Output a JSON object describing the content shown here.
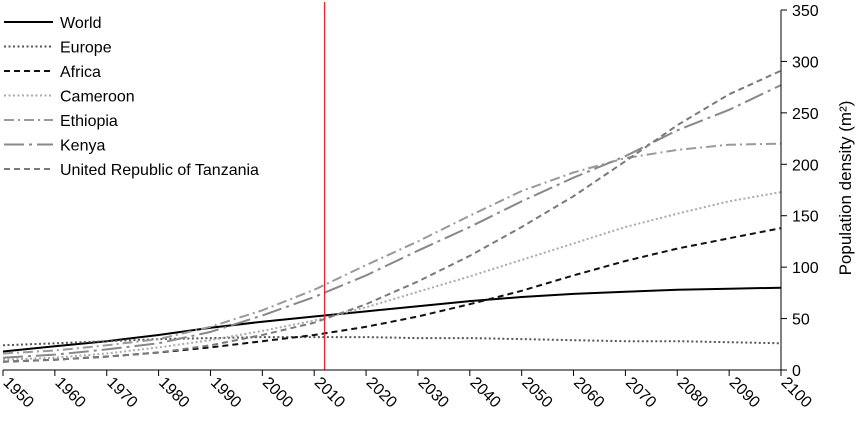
{
  "chart_data": {
    "type": "line",
    "title": "",
    "xlabel": "",
    "ylabel": "Population density (m²)",
    "xlim": [
      1950,
      2100
    ],
    "ylim": [
      0,
      350
    ],
    "x_ticks": [
      1950,
      1960,
      1970,
      1980,
      1990,
      2000,
      2010,
      2020,
      2030,
      2040,
      2050,
      2060,
      2070,
      2080,
      2090,
      2100
    ],
    "y_ticks": [
      0,
      50,
      100,
      150,
      200,
      250,
      300,
      350
    ],
    "y_axis_side": "right",
    "grid": false,
    "legend_position": "top-left",
    "reference_line": {
      "x": 2012,
      "color": "#e8232a"
    },
    "x": [
      1950,
      1960,
      1970,
      1980,
      1990,
      2000,
      2010,
      2020,
      2030,
      2040,
      2050,
      2060,
      2070,
      2080,
      2090,
      2100
    ],
    "series": [
      {
        "name": "World",
        "color": "#000000",
        "dash": "solid",
        "values": [
          18,
          23,
          28,
          34,
          41,
          47,
          52,
          57,
          62,
          67,
          71,
          74,
          76,
          78,
          79,
          80
        ]
      },
      {
        "name": "Europe",
        "color": "#555555",
        "dash": "dotted",
        "values": [
          24,
          26,
          28,
          30,
          31,
          32,
          32,
          32,
          31,
          31,
          30,
          29,
          28,
          28,
          27,
          26
        ]
      },
      {
        "name": "Africa",
        "color": "#111111",
        "dash": "dashed",
        "values": [
          8,
          10,
          13,
          17,
          22,
          28,
          34,
          42,
          52,
          64,
          77,
          92,
          106,
          118,
          128,
          138
        ]
      },
      {
        "name": "Cameroon",
        "color": "#aaaaaa",
        "dash": "dotted",
        "values": [
          10,
          12,
          16,
          22,
          29,
          38,
          48,
          61,
          76,
          91,
          107,
          123,
          139,
          152,
          164,
          173
        ]
      },
      {
        "name": "Ethiopia",
        "color": "#999999",
        "dash": "dashdot",
        "values": [
          16,
          19,
          24,
          30,
          42,
          58,
          78,
          102,
          125,
          150,
          174,
          192,
          206,
          214,
          219,
          220
        ]
      },
      {
        "name": "Kenya",
        "color": "#888888",
        "dash": "longdashdot",
        "values": [
          12,
          15,
          20,
          26,
          37,
          53,
          71,
          92,
          116,
          139,
          164,
          187,
          208,
          233,
          253,
          277
        ]
      },
      {
        "name": "United Republic of Tanzania",
        "color": "#7a7a7a",
        "dash": "dashed",
        "values": [
          8,
          10,
          13,
          17,
          24,
          34,
          46,
          64,
          86,
          111,
          139,
          169,
          203,
          238,
          268,
          291
        ]
      }
    ]
  }
}
